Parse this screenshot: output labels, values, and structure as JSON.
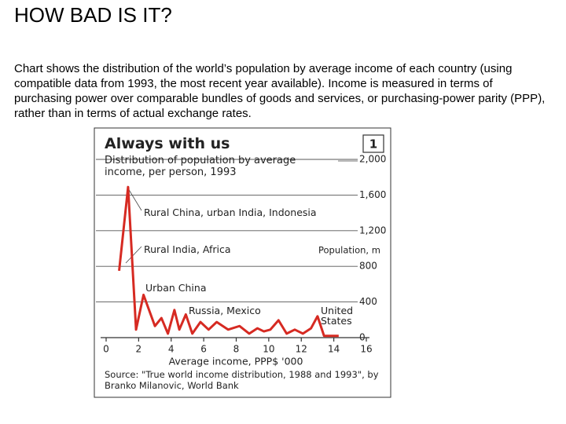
{
  "page": {
    "title": "HOW BAD IS IT?",
    "paragraph": "Chart  shows the distribution of the world’s population by average income of each country (using compatible data from 1993, the most recent year available). Income is measured in terms of purchasing power over comparable bundles of goods and services, or purchasing-power parity (PPP), rather than in terms of actual exchange rates."
  },
  "chart_data": {
    "type": "line",
    "title": "Always with us",
    "subtitle": "Distribution of population by average income, per person, 1993",
    "panel": "1",
    "xlabel": "Average income, PPP$ '000",
    "ylabel": "Population, m",
    "source": "Source: \"True world income distribution, 1988 and 1993\", by Branko Milanovic, World Bank",
    "annotations": [
      "Rural China, urban India, Indonesia",
      "Rural India, Africa",
      "Urban China",
      "Russia, Mexico",
      "United States"
    ],
    "xlim": [
      0,
      16
    ],
    "xticks": [
      0,
      2,
      4,
      6,
      8,
      10,
      12,
      14,
      16
    ],
    "ylim": [
      0,
      2000
    ],
    "yticks": [
      0,
      400,
      800,
      {
        "value": 1200,
        "label": "1,200"
      },
      {
        "value": 1600,
        "label": "1,600"
      },
      {
        "value": 2000,
        "label": "2,000"
      }
    ],
    "grid": true,
    "series": [
      {
        "color": "#d62a22",
        "x": [
          0.8,
          1.35,
          1.84,
          2.3,
          3.0,
          3.4,
          3.8,
          4.2,
          4.5,
          4.9,
          5.3,
          5.8,
          6.3,
          6.8,
          7.5,
          8.2,
          8.8,
          9.3,
          9.7,
          10.1,
          10.6,
          11.1,
          11.6,
          12.1,
          12.6,
          13.0,
          13.4,
          14.3
        ],
        "values": [
          750,
          1690,
          90,
          480,
          130,
          220,
          45,
          310,
          90,
          260,
          45,
          175,
          90,
          175,
          90,
          130,
          45,
          105,
          70,
          90,
          195,
          45,
          90,
          45,
          105,
          240,
          20,
          20
        ]
      }
    ]
  }
}
